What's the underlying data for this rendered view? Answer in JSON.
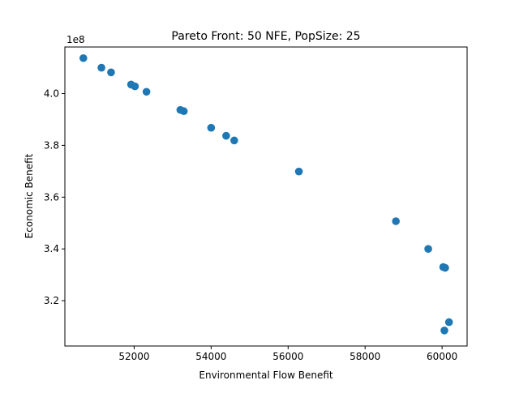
{
  "chart_data": {
    "type": "scatter",
    "title": "Pareto Front: 50 NFE, PopSize: 25",
    "xlabel": "Environmental Flow Benefit",
    "ylabel": "Economic Benefit",
    "y_offset_label": "1e8",
    "xlim": [
      50200,
      60650
    ],
    "ylim": [
      3.025,
      4.18
    ],
    "x_ticks": [
      52000,
      54000,
      56000,
      58000,
      60000
    ],
    "x_tick_labels": [
      "52000",
      "54000",
      "56000",
      "58000",
      "60000"
    ],
    "y_ticks": [
      3.2,
      3.4,
      3.6,
      3.8,
      4.0
    ],
    "y_tick_labels": [
      "3.2",
      "3.4",
      "3.6",
      "3.8",
      "4.0"
    ],
    "grid": false,
    "marker_color": "#1f77b4",
    "series": [
      {
        "points": [
          [
            50680,
            4.137
          ],
          [
            51150,
            4.1
          ],
          [
            51400,
            4.082
          ],
          [
            51920,
            4.035
          ],
          [
            52020,
            4.028
          ],
          [
            52320,
            4.007
          ],
          [
            53200,
            3.937
          ],
          [
            53290,
            3.932
          ],
          [
            54000,
            3.868
          ],
          [
            54390,
            3.837
          ],
          [
            54600,
            3.819
          ],
          [
            56280,
            3.699
          ],
          [
            58800,
            3.507
          ],
          [
            59640,
            3.4
          ],
          [
            60030,
            3.33
          ],
          [
            60080,
            3.327
          ],
          [
            60180,
            3.117
          ],
          [
            60060,
            3.085
          ]
        ]
      }
    ]
  }
}
